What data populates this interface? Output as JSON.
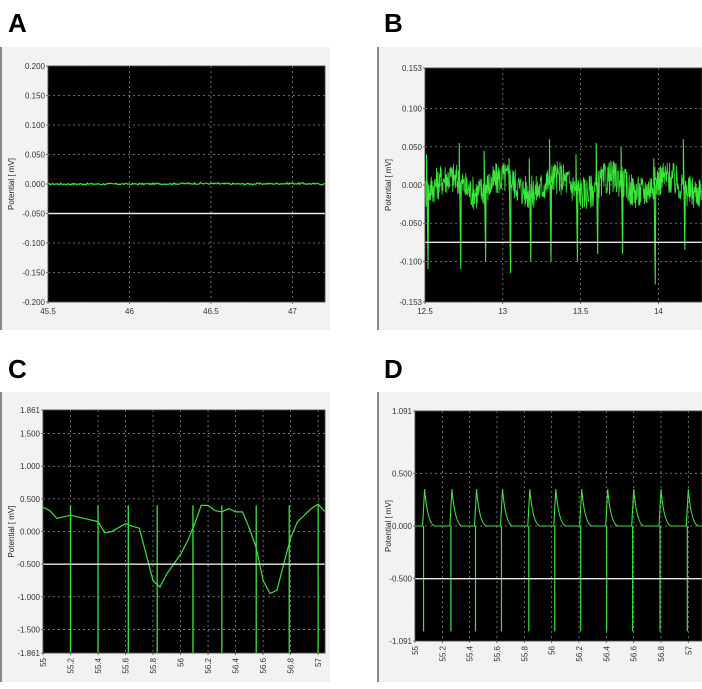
{
  "colors": {
    "panel_bg": "#f2f2f2",
    "plot_bg": "#000000",
    "grid": "#8a8a8a",
    "trace": "#39e639",
    "threshold": "#e8e8e8",
    "left_border": "#888888"
  },
  "chart_data": [
    {
      "type": "line",
      "panel_label": "A",
      "title": "",
      "xlabel": "",
      "ylabel": "Potential [ mV]",
      "xlim": [
        45.5,
        47.2
      ],
      "ylim": [
        -0.2,
        0.2
      ],
      "x_ticks": [
        "45.5",
        "46",
        "46.5",
        "47"
      ],
      "x_tick_values": [
        45.5,
        46,
        46.5,
        47
      ],
      "y_ticks": [
        "0.200",
        "0.150",
        "0.100",
        "0.050",
        "0.000",
        "-0.050",
        "-0.100",
        "-0.150",
        "-0.200"
      ],
      "y_tick_values": [
        0.2,
        0.15,
        0.1,
        0.05,
        0.0,
        -0.05,
        -0.1,
        -0.15,
        -0.2
      ],
      "threshold": -0.05,
      "grid": true,
      "series": [
        {
          "x": [
            45.5,
            45.8,
            46.1,
            46.4,
            46.7,
            47.0,
            47.2
          ],
          "y": [
            0.0,
            0.0,
            0.0,
            0.001,
            0.0,
            0.001,
            0.0
          ]
        }
      ]
    },
    {
      "type": "line",
      "panel_label": "B",
      "title": "",
      "xlabel": "",
      "ylabel": "Potential [ mV]",
      "xlim": [
        12.5,
        14.28
      ],
      "ylim": [
        -0.153,
        0.153
      ],
      "x_ticks": [
        "12.5",
        "13",
        "13.5",
        "14"
      ],
      "x_tick_values": [
        12.5,
        13,
        13.5,
        14
      ],
      "y_ticks": [
        "0.153",
        "0.100",
        "0.050",
        "0.000",
        "-0.050",
        "-0.100",
        "-0.153"
      ],
      "y_tick_values": [
        0.153,
        0.1,
        0.05,
        0.0,
        -0.05,
        -0.1,
        -0.153
      ],
      "threshold": -0.075,
      "grid": true,
      "spikes": [
        {
          "x": 12.51,
          "up": 0.04,
          "down": -0.11
        },
        {
          "x": 12.72,
          "up": 0.055,
          "down": -0.11
        },
        {
          "x": 12.88,
          "up": 0.045,
          "down": -0.1
        },
        {
          "x": 13.04,
          "up": 0.035,
          "down": -0.115
        },
        {
          "x": 13.17,
          "up": 0.035,
          "down": -0.1
        },
        {
          "x": 13.3,
          "up": 0.06,
          "down": -0.1
        },
        {
          "x": 13.47,
          "up": 0.04,
          "down": -0.1
        },
        {
          "x": 13.6,
          "up": 0.055,
          "down": -0.09
        },
        {
          "x": 13.76,
          "up": 0.05,
          "down": -0.09
        },
        {
          "x": 13.97,
          "up": 0.035,
          "down": -0.13
        },
        {
          "x": 14.16,
          "up": 0.06,
          "down": -0.085
        }
      ]
    },
    {
      "type": "line",
      "panel_label": "C",
      "title": "",
      "xlabel": "",
      "ylabel": "Potential [ mV]",
      "xlim": [
        55,
        57.05
      ],
      "ylim": [
        -1.861,
        1.861
      ],
      "x_ticks": [
        "55",
        "55.2",
        "55.4",
        "55.6",
        "55.8",
        "56",
        "56.2",
        "56.4",
        "56.6",
        "56.8",
        "57"
      ],
      "x_tick_values": [
        55,
        55.2,
        55.4,
        55.6,
        55.8,
        56,
        56.2,
        56.4,
        56.6,
        56.8,
        57
      ],
      "y_ticks": [
        "1.861",
        "1.500",
        "1.000",
        "0.500",
        "0.000",
        "-0.500",
        "-1.000",
        "-1.500",
        "-1.861"
      ],
      "y_tick_values": [
        1.861,
        1.5,
        1.0,
        0.5,
        0.0,
        -0.5,
        -1.0,
        -1.5,
        -1.861
      ],
      "threshold": -0.5,
      "grid": true,
      "series": [
        {
          "x": [
            55.0,
            55.05,
            55.1,
            55.2,
            55.3,
            55.4,
            55.45,
            55.5,
            55.6,
            55.65,
            55.7,
            55.75,
            55.8,
            55.85,
            55.9,
            55.95,
            56.0,
            56.05,
            56.1,
            56.15,
            56.2,
            56.25,
            56.3,
            56.35,
            56.4,
            56.45,
            56.5,
            56.55,
            56.6,
            56.65,
            56.7,
            56.75,
            56.8,
            56.85,
            56.9,
            56.95,
            57.0,
            57.05
          ],
          "y": [
            0.37,
            0.32,
            0.2,
            0.25,
            0.2,
            0.15,
            -0.02,
            0.0,
            0.12,
            0.08,
            0.05,
            -0.35,
            -0.75,
            -0.85,
            -0.65,
            -0.5,
            -0.35,
            -0.15,
            0.1,
            0.4,
            0.4,
            0.32,
            0.3,
            0.35,
            0.3,
            0.3,
            0.05,
            -0.25,
            -0.75,
            -0.95,
            -0.9,
            -0.5,
            -0.1,
            0.15,
            0.25,
            0.35,
            0.42,
            0.3
          ]
        }
      ],
      "spikes": [
        {
          "x": 55.2,
          "down": -1.861
        },
        {
          "x": 55.4,
          "down": -1.861
        },
        {
          "x": 55.62,
          "down": -1.861
        },
        {
          "x": 55.83,
          "down": -1.861
        },
        {
          "x": 56.09,
          "down": -1.861
        },
        {
          "x": 56.3,
          "down": -1.861
        },
        {
          "x": 56.55,
          "down": -1.861
        },
        {
          "x": 56.79,
          "down": -1.861
        },
        {
          "x": 57.0,
          "down": -1.861
        }
      ]
    },
    {
      "type": "line",
      "panel_label": "D",
      "title": "",
      "xlabel": "",
      "ylabel": "Potential [ mV]",
      "xlim": [
        55,
        57.1
      ],
      "ylim": [
        -1.091,
        1.091
      ],
      "x_ticks": [
        "55",
        "55.2",
        "55.4",
        "55.6",
        "55.8",
        "56",
        "56.2",
        "56.4",
        "56.6",
        "56.8",
        "57"
      ],
      "x_tick_values": [
        55,
        55.2,
        55.4,
        55.6,
        55.8,
        56,
        56.2,
        56.4,
        56.6,
        56.8,
        57
      ],
      "y_ticks": [
        "1.091",
        "0.500",
        "0.000",
        "-0.500",
        "-1.091"
      ],
      "y_tick_values": [
        1.091,
        0.5,
        0.0,
        -0.5,
        -1.091
      ],
      "threshold": -0.5,
      "grid": true,
      "spikes": [
        {
          "x": 55.07,
          "up": 0.35,
          "down": -1.0
        },
        {
          "x": 55.27,
          "up": 0.35,
          "down": -1.0
        },
        {
          "x": 55.45,
          "up": 0.35,
          "down": -1.0
        },
        {
          "x": 55.64,
          "up": 0.35,
          "down": -1.0
        },
        {
          "x": 55.84,
          "up": 0.35,
          "down": -1.0
        },
        {
          "x": 56.03,
          "up": 0.35,
          "down": -1.0
        },
        {
          "x": 56.22,
          "up": 0.35,
          "down": -1.0
        },
        {
          "x": 56.41,
          "up": 0.35,
          "down": -1.0
        },
        {
          "x": 56.6,
          "up": 0.35,
          "down": -1.0
        },
        {
          "x": 56.8,
          "up": 0.35,
          "down": -1.0
        },
        {
          "x": 57.0,
          "up": 0.35,
          "down": -1.0
        }
      ]
    }
  ]
}
